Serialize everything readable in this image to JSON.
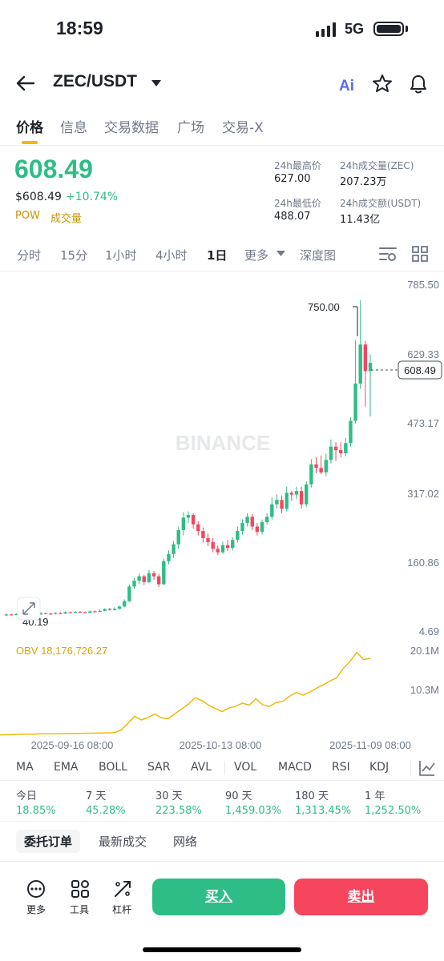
{
  "status_bar": {
    "time": "18:59",
    "network": "5G"
  },
  "header": {
    "pair": "ZEC/USDT"
  },
  "tabs": [
    "价格",
    "信息",
    "交易数据",
    "广场",
    "交易-X"
  ],
  "ticker": {
    "last_price": "608.49",
    "usd_price": "$608.49",
    "change": "+10.74%",
    "tags": [
      "POW",
      "成交量"
    ],
    "stats": [
      {
        "label": "24h最高价",
        "value": "627.00"
      },
      {
        "label": "24h成交量(ZEC)",
        "value": "207.23万"
      },
      {
        "label": "24h最低价",
        "value": "488.07"
      },
      {
        "label": "24h成交额(USDT)",
        "value": "11.43亿"
      }
    ]
  },
  "intervals": [
    "分时",
    "15分",
    "1小时",
    "4小时",
    "1日",
    "更多",
    "深度图"
  ],
  "chart": {
    "watermark": "BINANCE",
    "y_labels": [
      "785.50",
      "629.33",
      "473.17",
      "317.02",
      "160.86",
      "4.69"
    ],
    "high_marker": "750.00",
    "low_marker": "40.19",
    "current_price": "608.49",
    "obv_label": "OBV 18,176,726.27",
    "obv_y_labels": [
      "20.1M",
      "10.3M"
    ],
    "x_labels": [
      "2025-09-16 08:00",
      "2025-10-13 08:00",
      "2025-11-09 08:00"
    ],
    "up_color": "#2ebd85",
    "down_color": "#f6465d"
  },
  "chart_data": {
    "type": "candlestick",
    "ylim": [
      4.69,
      785.5
    ],
    "candles": [
      [
        40.19,
        42,
        45,
        39
      ],
      [
        42,
        41,
        44,
        40
      ],
      [
        41,
        43,
        45,
        40
      ],
      [
        43,
        42,
        44,
        41
      ],
      [
        42,
        44,
        46,
        41
      ],
      [
        44,
        43,
        45,
        42
      ],
      [
        43,
        42,
        44,
        41
      ],
      [
        42,
        45,
        47,
        41
      ],
      [
        45,
        44,
        46,
        43
      ],
      [
        44,
        43,
        46,
        42
      ],
      [
        43,
        45,
        47,
        42
      ],
      [
        45,
        44,
        47,
        43
      ],
      [
        44,
        47,
        49,
        43
      ],
      [
        47,
        46,
        49,
        45
      ],
      [
        46,
        48,
        50,
        45
      ],
      [
        48,
        47,
        50,
        46
      ],
      [
        47,
        46,
        49,
        45
      ],
      [
        46,
        49,
        51,
        45
      ],
      [
        49,
        48,
        51,
        47
      ],
      [
        48,
        50,
        53,
        47
      ],
      [
        50,
        54,
        56,
        49
      ],
      [
        54,
        52,
        57,
        51
      ],
      [
        52,
        55,
        58,
        51
      ],
      [
        55,
        60,
        62,
        53
      ],
      [
        60,
        72,
        76,
        58
      ],
      [
        72,
        105,
        110,
        70
      ],
      [
        105,
        118,
        124,
        100
      ],
      [
        118,
        128,
        134,
        110
      ],
      [
        128,
        115,
        132,
        108
      ],
      [
        115,
        135,
        142,
        112
      ],
      [
        135,
        128,
        140,
        120
      ],
      [
        128,
        110,
        134,
        104
      ],
      [
        110,
        162,
        168,
        108
      ],
      [
        162,
        178,
        186,
        155
      ],
      [
        178,
        200,
        208,
        170
      ],
      [
        200,
        232,
        240,
        190
      ],
      [
        232,
        260,
        272,
        220
      ],
      [
        260,
        266,
        274,
        248
      ],
      [
        266,
        245,
        270,
        235
      ],
      [
        245,
        230,
        252,
        220
      ],
      [
        230,
        214,
        238,
        204
      ],
      [
        214,
        205,
        224,
        196
      ],
      [
        205,
        190,
        214,
        182
      ],
      [
        190,
        182,
        198,
        176
      ],
      [
        182,
        198,
        206,
        178
      ],
      [
        198,
        192,
        210,
        185
      ],
      [
        192,
        210,
        216,
        186
      ],
      [
        210,
        230,
        240,
        204
      ],
      [
        230,
        248,
        256,
        222
      ],
      [
        248,
        262,
        270,
        240
      ],
      [
        262,
        240,
        268,
        232
      ],
      [
        240,
        228,
        248,
        220
      ],
      [
        228,
        250,
        256,
        222
      ],
      [
        250,
        262,
        270,
        244
      ],
      [
        262,
        290,
        306,
        256
      ],
      [
        290,
        300,
        312,
        280
      ],
      [
        300,
        280,
        310,
        270
      ],
      [
        280,
        316,
        330,
        274
      ],
      [
        316,
        312,
        320,
        298
      ],
      [
        312,
        320,
        330,
        302
      ],
      [
        320,
        290,
        330,
        280
      ],
      [
        290,
        335,
        342,
        284
      ],
      [
        335,
        380,
        392,
        328
      ],
      [
        380,
        372,
        396,
        360
      ],
      [
        372,
        362,
        400,
        358
      ],
      [
        362,
        390,
        404,
        354
      ],
      [
        390,
        420,
        436,
        382
      ],
      [
        420,
        412,
        430,
        388
      ],
      [
        412,
        405,
        430,
        396
      ],
      [
        405,
        428,
        440,
        398
      ],
      [
        428,
        478,
        486,
        420
      ],
      [
        478,
        562,
        660,
        472
      ],
      [
        562,
        650,
        750,
        550
      ],
      [
        650,
        590,
        658,
        510
      ],
      [
        590,
        608.49,
        627,
        488
      ]
    ],
    "obv_ylim": [
      0,
      20.1
    ],
    "obv": [
      0.1,
      0.12,
      0.15,
      0.2,
      0.22,
      0.25,
      0.3,
      0.32,
      0.35,
      0.36,
      0.38,
      0.4,
      0.42,
      0.45,
      0.5,
      0.52,
      0.55,
      0.6,
      1.2,
      2.8,
      4.5,
      3.6,
      4.2,
      5.0,
      4.1,
      3.9,
      5.1,
      6.2,
      7.4,
      8.9,
      8.2,
      7.1,
      6.3,
      5.6,
      6.4,
      6.8,
      7.6,
      7.1,
      8.6,
      7.2,
      6.8,
      7.7,
      8.0,
      9.2,
      10.1,
      9.5,
      10.2,
      11.1,
      11.9,
      12.8,
      13.6,
      15.8,
      17.5,
      19.6,
      17.9,
      18.18
    ]
  },
  "indicators": [
    "MA",
    "EMA",
    "BOLL",
    "SAR",
    "AVL",
    "VOL",
    "MACD",
    "RSI",
    "KDJ"
  ],
  "performance": [
    {
      "label": "今日",
      "value": "18.85%"
    },
    {
      "label": "7 天",
      "value": "45.28%"
    },
    {
      "label": "30 天",
      "value": "223.58%"
    },
    {
      "label": "90 天",
      "value": "1,459.03%"
    },
    {
      "label": "180 天",
      "value": "1,313.45%"
    },
    {
      "label": "1 年",
      "value": "1,252.50%"
    }
  ],
  "order_tabs": [
    "委托订单",
    "最新成交",
    "网络"
  ],
  "tools": [
    "更多",
    "工具",
    "杠杆"
  ],
  "actions": {
    "buy": "买入",
    "sell": "卖出",
    "buy_color": "#2ebd85",
    "sell_color": "#f6465d"
  }
}
